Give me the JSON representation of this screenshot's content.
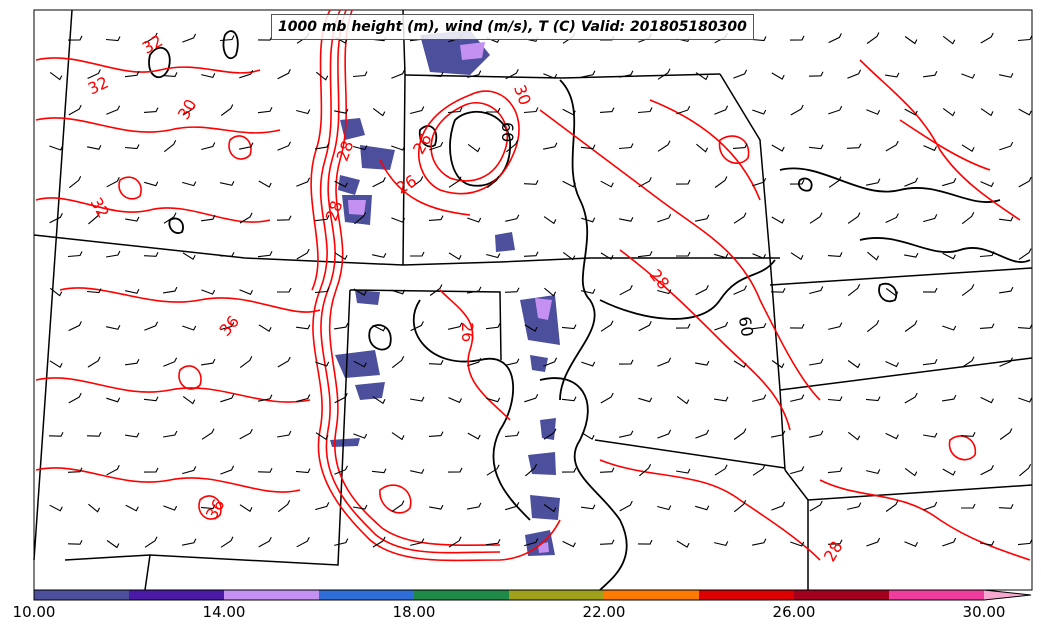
{
  "title": "1000 mb height (m), wind (m/s), T (C) Valid: 201805180300",
  "colors": {
    "temperature_contour": "#ff0000",
    "height_contour": "#000000",
    "state_borders": "#000000"
  },
  "contour_labels": [
    {
      "id": "t32a",
      "text": "32"
    },
    {
      "id": "t32b",
      "text": "32"
    },
    {
      "id": "t30a",
      "text": "30"
    },
    {
      "id": "t32c",
      "text": "32"
    },
    {
      "id": "t36a",
      "text": "36"
    },
    {
      "id": "t36b",
      "text": "36"
    },
    {
      "id": "t28a",
      "text": "28"
    },
    {
      "id": "t28b",
      "text": "28"
    },
    {
      "id": "t26a",
      "text": "26"
    },
    {
      "id": "t26b",
      "text": "26"
    },
    {
      "id": "t30b",
      "text": "30"
    },
    {
      "id": "t26c",
      "text": "26"
    },
    {
      "id": "t28c",
      "text": "28"
    },
    {
      "id": "t28d",
      "text": "28"
    },
    {
      "id": "h60a",
      "text": "60"
    },
    {
      "id": "h60b",
      "text": "60"
    }
  ],
  "colorbar": {
    "bins": [
      {
        "from": 10,
        "to": 12,
        "color": "#4b4f9c"
      },
      {
        "from": 12,
        "to": 14,
        "color": "#4a1aa6"
      },
      {
        "from": 14,
        "to": 16,
        "color": "#c490f2"
      },
      {
        "from": 16,
        "to": 18,
        "color": "#2f6ed9"
      },
      {
        "from": 18,
        "to": 20,
        "color": "#1f8a47"
      },
      {
        "from": 20,
        "to": 22,
        "color": "#a0a01a"
      },
      {
        "from": 22,
        "to": 24,
        "color": "#ff7a00"
      },
      {
        "from": 24,
        "to": 26,
        "color": "#dd0000"
      },
      {
        "from": 26,
        "to": 28,
        "color": "#a3001e"
      },
      {
        "from": 28,
        "to": 30,
        "color": "#ef3d9d"
      }
    ],
    "extend_color": "#f7a8d0",
    "tick_labels": [
      "10.00",
      "14.00",
      "18.00",
      "22.00",
      "26.00",
      "30.00"
    ]
  }
}
